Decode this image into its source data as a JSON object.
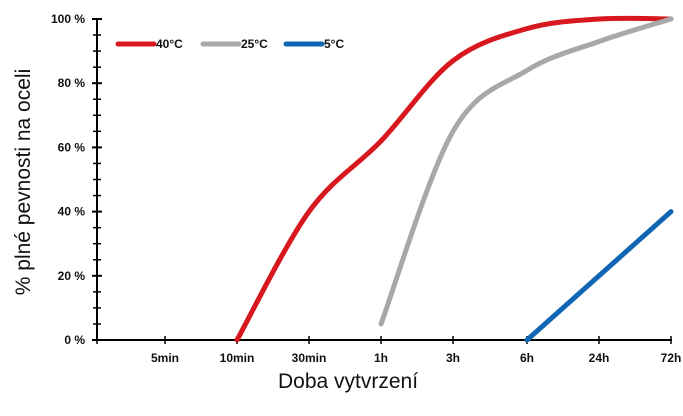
{
  "chart_data": {
    "type": "line",
    "xlabel": "Doba vytvrzení",
    "ylabel": "% plné pevnosti na oceli",
    "ylim": [
      0,
      100
    ],
    "y_ticks": [
      "0 %",
      "20 %",
      "40 %",
      "60 %",
      "80 %",
      "100 %"
    ],
    "x_ticks": [
      "5min",
      "10min",
      "30min",
      "1h",
      "3h",
      "6h",
      "24h",
      "72h"
    ],
    "grid": false,
    "legend_position": "top-left",
    "series": [
      {
        "name": "40°C",
        "color": "#d7191f",
        "points": [
          [
            "10min",
            0
          ],
          [
            "30min",
            40
          ],
          [
            "1h",
            62
          ],
          [
            "3h",
            87
          ],
          [
            "6h",
            97
          ],
          [
            "24h",
            100
          ],
          [
            "72h",
            100
          ]
        ]
      },
      {
        "name": "25°C",
        "color": "#a8a8a8",
        "points": [
          [
            "1h",
            5
          ],
          [
            "3h",
            65
          ],
          [
            "6h",
            84
          ],
          [
            "24h",
            93
          ],
          [
            "72h",
            100
          ]
        ]
      },
      {
        "name": "5°C",
        "color": "#1166b3",
        "points": [
          [
            "6h",
            0
          ],
          [
            "72h",
            40
          ]
        ]
      }
    ]
  }
}
